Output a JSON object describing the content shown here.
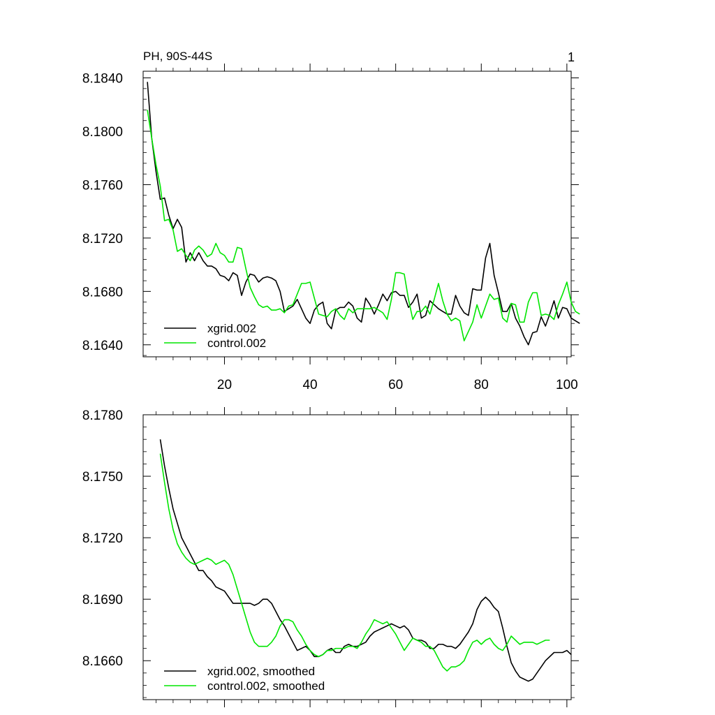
{
  "colors": {
    "xgrid": "#000000",
    "control": "#00e600"
  },
  "chart_data": [
    {
      "type": "line",
      "title_left": "PH, 90S-44S",
      "title_right": "1",
      "xlim": [
        1,
        101
      ],
      "ylim": [
        8.1631,
        8.1845
      ],
      "yticks": [
        "8.1640",
        "8.1680",
        "8.1720",
        "8.1760",
        "8.1800",
        "8.1840"
      ],
      "ytick_values": [
        8.164,
        8.168,
        8.172,
        8.176,
        8.18,
        8.184
      ],
      "xticks": [
        "20",
        "40",
        "60",
        "80",
        "100"
      ],
      "xtick_values": [
        20,
        40,
        60,
        80,
        100
      ],
      "legend_position": "bottom-left",
      "series": [
        {
          "name": "xgrid.002",
          "color_key": "xgrid",
          "x_start": 2,
          "values": [
            8.1837,
            8.1795,
            8.177,
            8.1749,
            8.175,
            8.1737,
            8.1727,
            8.1734,
            8.1728,
            8.1702,
            8.1709,
            8.1703,
            8.1709,
            8.1703,
            8.1699,
            8.1699,
            8.1697,
            8.1692,
            8.1691,
            8.1688,
            8.1694,
            8.1692,
            8.1677,
            8.1687,
            8.1693,
            8.1692,
            8.1687,
            8.169,
            8.1691,
            8.169,
            8.1688,
            8.168,
            8.1665,
            8.1667,
            8.1669,
            8.1674,
            8.1667,
            8.166,
            8.1656,
            8.1666,
            8.167,
            8.1672,
            8.1656,
            8.1652,
            8.1666,
            8.1668,
            8.1668,
            8.1672,
            8.1669,
            8.166,
            8.1657,
            8.1675,
            8.167,
            8.1663,
            8.167,
            8.1678,
            8.1673,
            8.1679,
            8.168,
            8.1677,
            8.1677,
            8.1668,
            8.1672,
            8.1678,
            8.166,
            8.1662,
            8.1673,
            8.167,
            8.1667,
            8.1665,
            8.1663,
            8.1663,
            8.1677,
            8.1669,
            8.1664,
            8.1662,
            8.1682,
            8.1681,
            8.1681,
            8.1705,
            8.1716,
            8.1692,
            8.1679,
            8.1665,
            8.1665,
            8.1671,
            8.166,
            8.1654,
            8.1646,
            8.164,
            8.1649,
            8.165,
            8.1661,
            8.1654,
            8.1663,
            8.1673,
            8.166,
            8.1668,
            8.1667,
            8.166,
            8.1658,
            8.1656
          ]
        },
        {
          "name": "control.002",
          "color_key": "control",
          "x_start": 2,
          "values": [
            8.1816,
            8.1795,
            8.1775,
            8.1759,
            8.1733,
            8.1734,
            8.1726,
            8.171,
            8.1712,
            8.1707,
            8.1703,
            8.1711,
            8.1714,
            8.1711,
            8.1706,
            8.1708,
            8.1716,
            8.1709,
            8.1707,
            8.1702,
            8.1702,
            8.1713,
            8.1712,
            8.1697,
            8.1683,
            8.1676,
            8.167,
            8.1668,
            8.1669,
            8.1666,
            8.1666,
            8.1667,
            8.1664,
            8.1669,
            8.167,
            8.1678,
            8.1686,
            8.1686,
            8.1687,
            8.1675,
            8.1663,
            8.1662,
            8.1661,
            8.1665,
            8.1667,
            8.1662,
            8.1659,
            8.1667,
            8.1664,
            8.1667,
            8.1667,
            8.1667,
            8.1667,
            8.1668,
            8.1666,
            8.1664,
            8.1659,
            8.1674,
            8.1694,
            8.1694,
            8.1693,
            8.1674,
            8.1659,
            8.1665,
            8.1665,
            8.1669,
            8.1663,
            8.1674,
            8.1686,
            8.1673,
            8.1663,
            8.1658,
            8.166,
            8.1658,
            8.1643,
            8.165,
            8.1657,
            8.167,
            8.166,
            8.1669,
            8.1678,
            8.1674,
            8.1675,
            8.166,
            8.1657,
            8.1671,
            8.167,
            8.1657,
            8.1657,
            8.1672,
            8.1679,
            8.1679,
            8.1662,
            8.1663,
            8.1662,
            8.1659,
            8.167,
            8.1678,
            8.1687,
            8.1672,
            8.1665,
            8.1663
          ]
        }
      ]
    },
    {
      "type": "line",
      "xlim": [
        1,
        101
      ],
      "ylim": [
        8.1641,
        8.178
      ],
      "yticks": [
        "8.1660",
        "8.1690",
        "8.1720",
        "8.1750",
        "8.1780"
      ],
      "ytick_values": [
        8.166,
        8.169,
        8.172,
        8.175,
        8.178
      ],
      "xtick_values": [
        20,
        40,
        60,
        80,
        100
      ],
      "legend_position": "bottom-left",
      "series": [
        {
          "name": "xgrid.002, smoothed",
          "color_key": "xgrid",
          "x_start": 5,
          "values": [
            8.1768,
            8.1755,
            8.1744,
            8.1734,
            8.1727,
            8.172,
            8.1716,
            8.1712,
            8.1708,
            8.1704,
            8.1704,
            8.1701,
            8.1699,
            8.1696,
            8.1695,
            8.1694,
            8.1691,
            8.1688,
            8.1688,
            8.1688,
            8.1688,
            8.1688,
            8.1687,
            8.1688,
            8.169,
            8.169,
            8.1688,
            8.1684,
            8.168,
            8.1677,
            8.1673,
            8.1669,
            8.1665,
            8.1666,
            8.1667,
            8.1665,
            8.1662,
            8.1662,
            8.1663,
            8.1665,
            8.1666,
            8.1664,
            8.1664,
            8.1667,
            8.1668,
            8.1667,
            8.1667,
            8.1668,
            8.1669,
            8.1672,
            8.1674,
            8.1675,
            8.1676,
            8.1677,
            8.1678,
            8.1677,
            8.1676,
            8.1677,
            8.1675,
            8.1671,
            8.167,
            8.167,
            8.1669,
            8.1666,
            8.1666,
            8.1668,
            8.1668,
            8.1667,
            8.1667,
            8.1666,
            8.1668,
            8.1671,
            8.1674,
            8.1678,
            8.1685,
            8.1689,
            8.1691,
            8.1689,
            8.1686,
            8.1684,
            8.1676,
            8.1667,
            8.1659,
            8.1655,
            8.1652,
            8.1651,
            8.165,
            8.1651,
            8.1654,
            8.1657,
            8.166,
            8.1662,
            8.1664,
            8.1664,
            8.1664,
            8.1665,
            8.1663
          ]
        },
        {
          "name": "control.002, smoothed",
          "color_key": "control",
          "x_start": 5,
          "values": [
            8.1761,
            8.1747,
            8.1734,
            8.1724,
            8.1717,
            8.1713,
            8.171,
            8.1708,
            8.1707,
            8.1708,
            8.1709,
            8.171,
            8.1709,
            8.1707,
            8.1708,
            8.1709,
            8.1707,
            8.1702,
            8.1695,
            8.1688,
            8.1681,
            8.1674,
            8.1669,
            8.1667,
            8.1667,
            8.1667,
            8.1669,
            8.1672,
            8.1677,
            8.168,
            8.168,
            8.1679,
            8.1675,
            8.1672,
            8.1668,
            8.1665,
            8.1663,
            8.1662,
            8.1663,
            8.1665,
            8.1665,
            8.1666,
            8.1666,
            8.1666,
            8.1667,
            8.1667,
            8.1666,
            8.1669,
            8.1673,
            8.1676,
            8.168,
            8.1679,
            8.1678,
            8.1679,
            8.1676,
            8.1673,
            8.1669,
            8.1665,
            8.1668,
            8.1671,
            8.167,
            8.1669,
            8.1667,
            8.1667,
            8.1665,
            8.1661,
            8.1657,
            8.1655,
            8.1657,
            8.1657,
            8.1658,
            8.166,
            8.1665,
            8.1669,
            8.167,
            8.1668,
            8.167,
            8.1671,
            8.1668,
            8.1666,
            8.1665,
            8.1668,
            8.1672,
            8.167,
            8.1668,
            8.1669,
            8.1669,
            8.1669,
            8.1668,
            8.1669,
            8.167,
            8.167
          ]
        }
      ]
    }
  ]
}
